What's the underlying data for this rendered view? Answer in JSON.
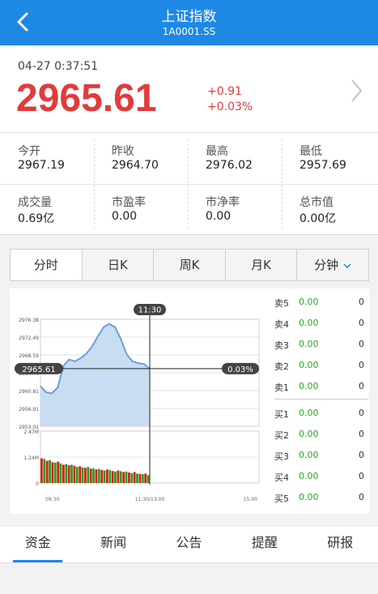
{
  "header": {
    "title": "上证指数",
    "code": "1A0001.SS"
  },
  "quote": {
    "time": "04-27 0:37:51",
    "price": "2965.61",
    "change": "+0.91",
    "change_pct": "+0.03%"
  },
  "stats": [
    {
      "label": "今开",
      "value": "2967.19"
    },
    {
      "label": "昨收",
      "value": "2964.70"
    },
    {
      "label": "最高",
      "value": "2976.02"
    },
    {
      "label": "最低",
      "value": "2957.69"
    },
    {
      "label": "成交量",
      "value": "0.69亿"
    },
    {
      "label": "市盈率",
      "value": "0.00"
    },
    {
      "label": "市净率",
      "value": "0.00"
    },
    {
      "label": "总市值",
      "value": "0.00亿"
    }
  ],
  "tabs": [
    "分时",
    "日K",
    "周K",
    "月K",
    "分钟"
  ],
  "chart_data": {
    "type": "area",
    "cursor_time": "11:30",
    "cursor_price": "2965.61",
    "cursor_pct": "0.03%",
    "y_ticks": [
      "2976.38",
      "2972.49",
      "2968.59",
      "2964.70",
      "2960.81",
      "2956.91",
      "2953.02"
    ],
    "x_ticks": [
      "09:30",
      "11:30/13:00",
      "15:00"
    ],
    "vol_ticks": [
      "2.47M",
      "1.24M",
      "0"
    ],
    "price_series": [
      2961.8,
      2960.4,
      2960.2,
      2961.5,
      2966.2,
      2967.6,
      2967.2,
      2967.9,
      2968.9,
      2970.5,
      2972.7,
      2974.7,
      2975.4,
      2974.6,
      2972.0,
      2968.7,
      2967.2,
      2966.8,
      2966.6,
      2965.6
    ],
    "volume_series": [
      0.95,
      0.92,
      0.85,
      0.88,
      0.8,
      0.78,
      0.82,
      0.75,
      0.7,
      0.72,
      0.68,
      0.7,
      0.66,
      0.62,
      0.64,
      0.6,
      0.58,
      0.62,
      0.55,
      0.56,
      0.52,
      0.54,
      0.5,
      0.48,
      0.52,
      0.5,
      0.46,
      0.44,
      0.48,
      0.45,
      0.42,
      0.44,
      0.4,
      0.38,
      0.42,
      0.36,
      0.35,
      0.34,
      0.36,
      0.3
    ],
    "colors": {
      "line": "#6a9fd8",
      "fill": "#c8dcf2",
      "up": "#e11b1b",
      "down": "#1fa31f"
    }
  },
  "orderbook": {
    "sell": [
      {
        "name": "卖5",
        "price": "0.00",
        "vol": "0"
      },
      {
        "name": "卖4",
        "price": "0.00",
        "vol": "0"
      },
      {
        "name": "卖3",
        "price": "0.00",
        "vol": "0"
      },
      {
        "name": "卖2",
        "price": "0.00",
        "vol": "0"
      },
      {
        "name": "卖1",
        "price": "0.00",
        "vol": "0"
      }
    ],
    "buy": [
      {
        "name": "买1",
        "price": "0.00",
        "vol": "0"
      },
      {
        "name": "买2",
        "price": "0.00",
        "vol": "0"
      },
      {
        "name": "买3",
        "price": "0.00",
        "vol": "0"
      },
      {
        "name": "买4",
        "price": "0.00",
        "vol": "0"
      },
      {
        "name": "买5",
        "price": "0.00",
        "vol": "0"
      }
    ]
  },
  "bottom_tabs": [
    "资金",
    "新闻",
    "公告",
    "提醒",
    "研报"
  ],
  "icons": {
    "back": "back-arrow-icon",
    "detail": "chevron-right-icon",
    "dropdown": "chevron-down-icon"
  }
}
